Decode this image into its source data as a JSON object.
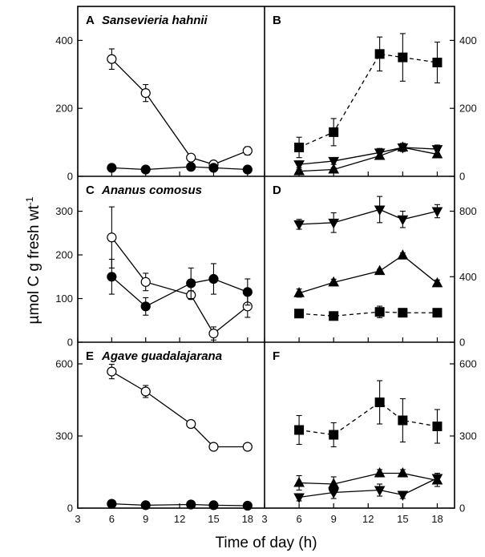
{
  "figure": {
    "ylabel_main": "µmol C g fresh wt",
    "ylabel_sup": "-1",
    "xlabel": "Time of day (h)",
    "x_ticks": [
      3,
      6,
      9,
      12,
      15,
      18
    ]
  },
  "chart_data": [
    {
      "panel": "A",
      "title": "Sansevieria hahnii",
      "type": "line",
      "xlim": [
        3,
        19.5
      ],
      "ylim": [
        0,
        500
      ],
      "yticks": [
        0,
        200,
        400
      ],
      "y_axis": "left",
      "series": [
        {
          "marker": "circle-open",
          "line": "solid",
          "x": [
            6,
            9,
            13,
            15,
            18
          ],
          "y": [
            345,
            245,
            55,
            35,
            75
          ],
          "err": [
            30,
            25,
            8,
            6,
            12
          ]
        },
        {
          "marker": "circle-filled",
          "line": "solid",
          "x": [
            6,
            9,
            13,
            15,
            18
          ],
          "y": [
            25,
            20,
            28,
            25,
            20
          ],
          "err": [
            4,
            3,
            4,
            4,
            3
          ]
        }
      ]
    },
    {
      "panel": "B",
      "title": "",
      "type": "line",
      "xlim": [
        3,
        19.5
      ],
      "ylim": [
        0,
        500
      ],
      "yticks": [
        0,
        200,
        400
      ],
      "y_axis": "right",
      "series": [
        {
          "marker": "square-filled",
          "line": "dashed",
          "x": [
            6,
            9,
            13,
            15,
            18
          ],
          "y": [
            85,
            130,
            360,
            350,
            335
          ],
          "err": [
            30,
            40,
            50,
            70,
            60
          ]
        },
        {
          "marker": "triangle-down-filled",
          "line": "solid",
          "x": [
            6,
            9,
            13,
            15,
            18
          ],
          "y": [
            35,
            45,
            70,
            85,
            80
          ],
          "err": [
            10,
            10,
            12,
            12,
            12
          ]
        },
        {
          "marker": "triangle-up-filled",
          "line": "solid",
          "x": [
            6,
            9,
            13,
            15,
            18
          ],
          "y": [
            15,
            20,
            60,
            85,
            65
          ],
          "err": [
            5,
            5,
            10,
            10,
            10
          ]
        }
      ]
    },
    {
      "panel": "C",
      "title": "Ananus comosus",
      "type": "line",
      "xlim": [
        3,
        19.5
      ],
      "ylim": [
        0,
        380
      ],
      "yticks": [
        0,
        100,
        200,
        300
      ],
      "y_axis": "left",
      "series": [
        {
          "marker": "circle-open",
          "line": "solid",
          "x": [
            6,
            9,
            13,
            15,
            18
          ],
          "y": [
            240,
            138,
            108,
            20,
            82
          ],
          "err": [
            70,
            20,
            10,
            15,
            25
          ]
        },
        {
          "marker": "circle-filled",
          "line": "solid",
          "x": [
            6,
            9,
            13,
            15,
            18
          ],
          "y": [
            150,
            82,
            135,
            145,
            115
          ],
          "err": [
            40,
            20,
            35,
            35,
            30
          ]
        }
      ]
    },
    {
      "panel": "D",
      "title": "",
      "type": "line",
      "xlim": [
        3,
        19.5
      ],
      "ylim": [
        0,
        1013
      ],
      "yticks": [
        0,
        400,
        800
      ],
      "y_axis": "right",
      "series": [
        {
          "marker": "triangle-down-filled",
          "line": "solid",
          "x": [
            6,
            9,
            13,
            15,
            18
          ],
          "y": [
            720,
            730,
            810,
            750,
            800
          ],
          "err": [
            30,
            60,
            80,
            50,
            40
          ]
        },
        {
          "marker": "triangle-up-filled",
          "line": "solid",
          "x": [
            6,
            9,
            13,
            15,
            18
          ],
          "y": [
            300,
            365,
            435,
            530,
            360
          ],
          "err": [
            25,
            20,
            10,
            15,
            20
          ]
        },
        {
          "marker": "square-filled",
          "line": "dashed",
          "x": [
            6,
            9,
            13,
            15,
            18
          ],
          "y": [
            175,
            160,
            185,
            180,
            180
          ],
          "err": [
            20,
            15,
            35,
            15,
            15
          ]
        }
      ]
    },
    {
      "panel": "E",
      "title": "Agave guadalajarana",
      "type": "line",
      "xlim": [
        3,
        19.5
      ],
      "ylim": [
        0,
        690
      ],
      "yticks": [
        0,
        300,
        600
      ],
      "y_axis": "left",
      "series": [
        {
          "marker": "circle-open",
          "line": "solid",
          "x": [
            6,
            9,
            13,
            15,
            18
          ],
          "y": [
            568,
            485,
            350,
            255,
            255
          ],
          "err": [
            30,
            25,
            8,
            5,
            5
          ]
        },
        {
          "marker": "circle-filled",
          "line": "solid",
          "x": [
            6,
            9,
            13,
            15,
            18
          ],
          "y": [
            18,
            12,
            15,
            12,
            10
          ],
          "err": [
            5,
            3,
            3,
            3,
            3
          ]
        }
      ]
    },
    {
      "panel": "F",
      "title": "",
      "type": "line",
      "xlim": [
        3,
        19.5
      ],
      "ylim": [
        0,
        690
      ],
      "yticks": [
        0,
        300,
        600
      ],
      "y_axis": "right",
      "series": [
        {
          "marker": "square-filled",
          "line": "dashed",
          "x": [
            6,
            9,
            13,
            15,
            18
          ],
          "y": [
            325,
            305,
            440,
            365,
            340
          ],
          "err": [
            60,
            50,
            90,
            90,
            70
          ]
        },
        {
          "marker": "triangle-up-filled",
          "line": "solid",
          "x": [
            6,
            9,
            13,
            15,
            18
          ],
          "y": [
            105,
            100,
            145,
            145,
            115
          ],
          "err": [
            30,
            30,
            15,
            15,
            25
          ]
        },
        {
          "marker": "circle-filled",
          "line": "solid",
          "x": [
            9
          ],
          "y": [
            80
          ],
          "err": [
            20
          ]
        },
        {
          "marker": "triangle-down-filled",
          "line": "solid",
          "x": [
            6,
            9,
            13,
            15,
            18
          ],
          "y": [
            45,
            65,
            75,
            55,
            125
          ],
          "err": [
            15,
            25,
            25,
            15,
            20
          ]
        }
      ]
    }
  ]
}
